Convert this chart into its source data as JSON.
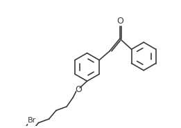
{
  "bg": "#ffffff",
  "lc": "#3a3a3a",
  "lw": 1.2,
  "fs": 7.5,
  "tc": "#3a3a3a",
  "label_Br": "Br",
  "label_O": "O",
  "xlim": [
    0,
    10.5
  ],
  "ylim": [
    0,
    7.2
  ]
}
